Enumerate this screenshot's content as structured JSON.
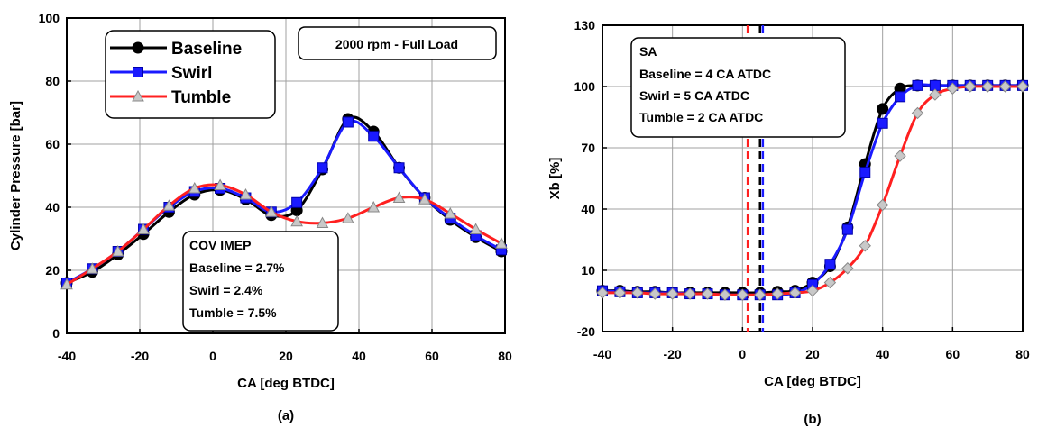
{
  "chart_data": [
    {
      "type": "line",
      "subtitle": "(a)",
      "xlabel": "CA [deg BTDC]",
      "ylabel": "Cylinder Pressure [bar]",
      "xlim": [
        -40,
        80
      ],
      "ylim": [
        0,
        100
      ],
      "xticks": [
        -40,
        -20,
        0,
        20,
        40,
        60,
        80
      ],
      "yticks": [
        0,
        20,
        40,
        60,
        80,
        100
      ],
      "grid": true,
      "legend_position": "top-left",
      "condition_label": "2000 rpm - Full Load",
      "annotation": {
        "title": "COV IMEP",
        "lines": [
          "Baseline = 2.7%",
          "Swirl = 2.4%",
          "Tumble = 7.5%"
        ]
      },
      "series": [
        {
          "name": "Baseline",
          "color": "#000000",
          "marker": "circle",
          "x": [
            -40,
            -33,
            -26,
            -19,
            -12,
            -5,
            2,
            9,
            16,
            23,
            30,
            37,
            44,
            51,
            58,
            65,
            72,
            79
          ],
          "y": [
            16,
            19.5,
            25,
            31.5,
            38.5,
            44,
            45.5,
            42.5,
            37.5,
            39,
            52,
            68,
            64,
            52.5,
            43,
            36,
            30.5,
            26
          ]
        },
        {
          "name": "Swirl",
          "color": "#1a1aff",
          "marker": "square",
          "x": [
            -40,
            -33,
            -26,
            -19,
            -12,
            -5,
            2,
            9,
            16,
            23,
            30,
            37,
            44,
            51,
            58,
            65,
            72,
            79
          ],
          "y": [
            16,
            20.5,
            26,
            33,
            40,
            45,
            46,
            43,
            38.5,
            41.5,
            52.5,
            67,
            62.5,
            52.5,
            43,
            36.5,
            31,
            26.5
          ]
        },
        {
          "name": "Tumble",
          "color": "#ff2020",
          "marker": "triangle",
          "x": [
            -40,
            -33,
            -26,
            -19,
            -12,
            -5,
            2,
            9,
            16,
            23,
            30,
            37,
            44,
            51,
            58,
            65,
            72,
            79
          ],
          "y": [
            15.5,
            20.5,
            26,
            33,
            40.5,
            46,
            47,
            44,
            38.5,
            35.5,
            35,
            36.5,
            40,
            43,
            42.5,
            38,
            33,
            28.5
          ]
        }
      ]
    },
    {
      "type": "line",
      "subtitle": "(b)",
      "xlabel": "CA [deg BTDC]",
      "ylabel": "Xb [%]",
      "xlim": [
        -40,
        80
      ],
      "ylim": [
        -20,
        130
      ],
      "xticks": [
        -40,
        -20,
        0,
        20,
        40,
        60,
        80
      ],
      "yticks": [
        -20,
        10,
        40,
        70,
        100,
        130
      ],
      "grid": true,
      "annotation": {
        "title": "SA",
        "lines": [
          "Baseline = 4 CA ATDC",
          "Swirl = 5 CA ATDC",
          "Tumble = 2 CA ATDC"
        ]
      },
      "vlines": [
        {
          "x": 1.5,
          "color": "#ff2020"
        },
        {
          "x": 5.0,
          "color": "#000000"
        },
        {
          "x": 5.8,
          "color": "#1a1aff"
        }
      ],
      "series": [
        {
          "name": "Baseline",
          "color": "#000000",
          "marker": "circle",
          "x": [
            -40,
            -35,
            -30,
            -25,
            -20,
            -15,
            -10,
            -5,
            0,
            5,
            10,
            15,
            20,
            25,
            30,
            35,
            40,
            45,
            50,
            55,
            60,
            65,
            70,
            75,
            80
          ],
          "y": [
            0,
            0,
            -0.5,
            -0.5,
            -1,
            -1,
            -1,
            -1,
            -1,
            -1,
            -0.5,
            0,
            4,
            12,
            31,
            62,
            89,
            99,
            100.5,
            100.5,
            100.5,
            100.5,
            100.5,
            100.5,
            100.5
          ]
        },
        {
          "name": "Swirl",
          "color": "#1a1aff",
          "marker": "square",
          "x": [
            -40,
            -35,
            -30,
            -25,
            -20,
            -15,
            -10,
            -5,
            0,
            5,
            10,
            15,
            20,
            25,
            30,
            35,
            40,
            45,
            50,
            55,
            60,
            65,
            70,
            75,
            80
          ],
          "y": [
            0,
            -0.5,
            -1,
            -1,
            -1,
            -1.5,
            -1.5,
            -2,
            -2,
            -2,
            -2,
            -1,
            3,
            13,
            30,
            58,
            82,
            95,
            100.5,
            100.5,
            100.5,
            100.5,
            100.5,
            100.5,
            100.5
          ]
        },
        {
          "name": "Tumble",
          "color": "#ff2020",
          "marker": "diamond",
          "x": [
            -40,
            -35,
            -30,
            -25,
            -20,
            -15,
            -10,
            -5,
            0,
            5,
            10,
            15,
            20,
            25,
            30,
            35,
            40,
            45,
            50,
            55,
            60,
            65,
            70,
            75,
            80
          ],
          "y": [
            -1,
            -1,
            -1,
            -1.5,
            -1.5,
            -1.5,
            -1.5,
            -2,
            -2,
            -2,
            -1.5,
            -1,
            0,
            4,
            11,
            22,
            42,
            66,
            87,
            96,
            99,
            100,
            100,
            100,
            100
          ]
        }
      ]
    }
  ]
}
